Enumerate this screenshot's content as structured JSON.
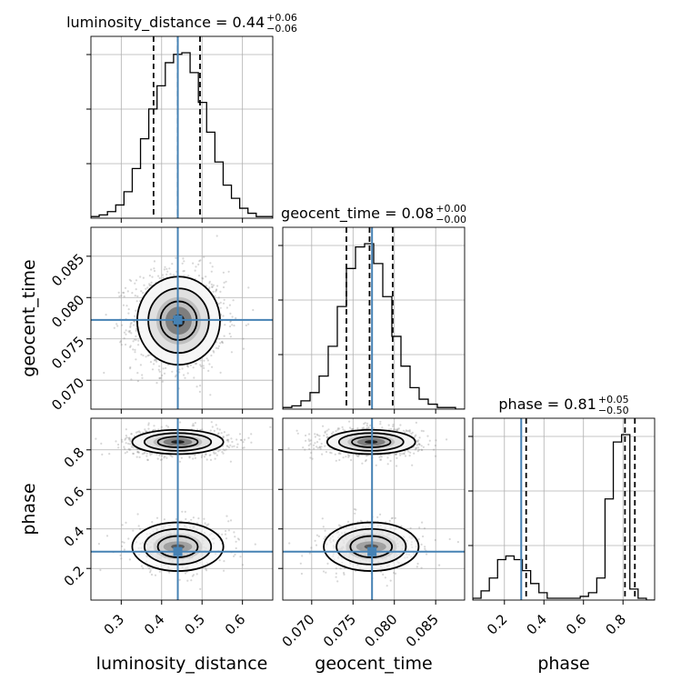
{
  "chart_data": {
    "type": "corner",
    "parameters": [
      "luminosity_distance",
      "geocent_time",
      "phase"
    ],
    "truths": {
      "luminosity_distance": 0.44,
      "geocent_time": 0.0773,
      "phase": 0.285
    },
    "truth_color": "#4682b4",
    "ranges": {
      "luminosity_distance": [
        0.225,
        0.675
      ],
      "geocent_time": [
        0.0665,
        0.0885
      ],
      "phase": [
        0.04,
        0.96
      ]
    },
    "ticks": {
      "luminosity_distance": {
        "values": [
          0.3,
          0.4,
          0.5,
          0.6
        ],
        "labels": [
          "0.3",
          "0.4",
          "0.5",
          "0.6"
        ]
      },
      "geocent_time": {
        "values": [
          0.07,
          0.075,
          0.08,
          0.085
        ],
        "labels": [
          "0.070",
          "0.075",
          "0.080",
          "0.085"
        ]
      },
      "phase": {
        "values": [
          0.2,
          0.4,
          0.6,
          0.8
        ],
        "labels": [
          "0.2",
          "0.4",
          "0.6",
          "0.8"
        ]
      }
    },
    "titles": [
      {
        "param": "luminosity_distance",
        "label": "luminosity_distance",
        "median": "0.44",
        "plus": "+0.06",
        "minus": "−0.06"
      },
      {
        "param": "geocent_time",
        "label": "geocent_time",
        "median": "0.08",
        "plus": "+0.00",
        "minus": "−0.00"
      },
      {
        "param": "phase",
        "label": "phase",
        "median": "0.81",
        "plus": "+0.05",
        "minus": "−0.50"
      }
    ],
    "quantiles": {
      "luminosity_distance": [
        0.38,
        0.44,
        0.495
      ],
      "geocent_time": [
        0.0742,
        0.077,
        0.0798
      ],
      "phase": [
        0.31,
        0.81,
        0.86
      ]
    },
    "histograms": {
      "luminosity_distance": {
        "range": [
          0.225,
          0.675
        ],
        "counts": [
          1,
          2,
          4,
          8,
          16,
          30,
          48,
          66,
          80,
          94,
          99,
          100,
          88,
          70,
          52,
          34,
          20,
          12,
          6,
          3,
          1,
          1
        ]
      },
      "geocent_time": {
        "range": [
          0.0665,
          0.0885
        ],
        "counts": [
          1,
          2,
          5,
          10,
          20,
          38,
          62,
          85,
          98,
          100,
          88,
          68,
          44,
          26,
          13,
          6,
          3,
          1,
          1,
          0
        ]
      },
      "phase": {
        "range": [
          0.04,
          0.96
        ],
        "counts": [
          1,
          5,
          12,
          22,
          24,
          22,
          16,
          9,
          4,
          1,
          1,
          1,
          1,
          2,
          4,
          12,
          55,
          86,
          90,
          6,
          1,
          0
        ]
      }
    },
    "blobs": {
      "luminosity_distance|geocent_time": [
        {
          "cx": 0.442,
          "cy": 0.0772,
          "sx": 0.05,
          "sy": 0.0026,
          "w": 1
        }
      ],
      "luminosity_distance|phase": [
        {
          "cx": 0.44,
          "cy": 0.84,
          "sx": 0.055,
          "sy": 0.03,
          "w": 0.68
        },
        {
          "cx": 0.44,
          "cy": 0.31,
          "sx": 0.055,
          "sy": 0.06,
          "w": 0.32
        }
      ],
      "geocent_time|phase": [
        {
          "cx": 0.0772,
          "cy": 0.84,
          "sx": 0.0026,
          "sy": 0.03,
          "w": 0.68
        },
        {
          "cx": 0.0772,
          "cy": 0.31,
          "sx": 0.0028,
          "sy": 0.06,
          "w": 0.32
        }
      ]
    }
  }
}
